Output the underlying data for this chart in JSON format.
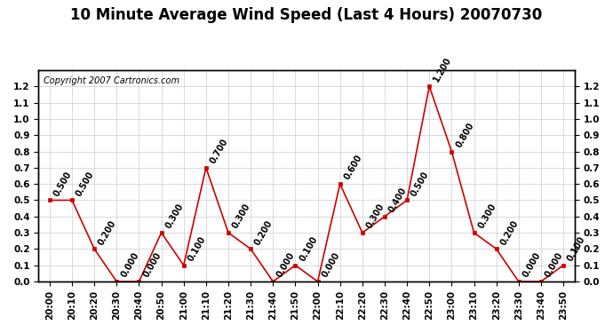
{
  "title": "10 Minute Average Wind Speed (Last 4 Hours) 20070730",
  "copyright": "Copyright 2007 Cartronics.com",
  "x_labels": [
    "20:00",
    "20:10",
    "20:20",
    "20:30",
    "20:40",
    "20:50",
    "21:00",
    "21:10",
    "21:20",
    "21:30",
    "21:40",
    "21:50",
    "22:00",
    "22:10",
    "22:20",
    "22:30",
    "22:40",
    "22:50",
    "23:00",
    "23:10",
    "23:20",
    "23:30",
    "23:40",
    "23:50"
  ],
  "y_values": [
    0.5,
    0.5,
    0.2,
    0.0,
    0.0,
    0.3,
    0.1,
    0.7,
    0.3,
    0.2,
    0.0,
    0.1,
    0.0,
    0.6,
    0.3,
    0.4,
    0.5,
    1.2,
    0.8,
    0.3,
    0.2,
    0.0,
    0.0,
    0.1
  ],
  "line_color": "#cc0000",
  "marker_color": "#cc0000",
  "bg_color": "#ffffff",
  "grid_color": "#cccccc",
  "ylim": [
    0.0,
    1.3
  ],
  "yticks": [
    0.0,
    0.1,
    0.2,
    0.3,
    0.4,
    0.5,
    0.6,
    0.7,
    0.8,
    0.9,
    1.0,
    1.1,
    1.2
  ],
  "title_fontsize": 12,
  "label_fontsize": 7.5,
  "annotation_fontsize": 7,
  "copyright_fontsize": 7
}
